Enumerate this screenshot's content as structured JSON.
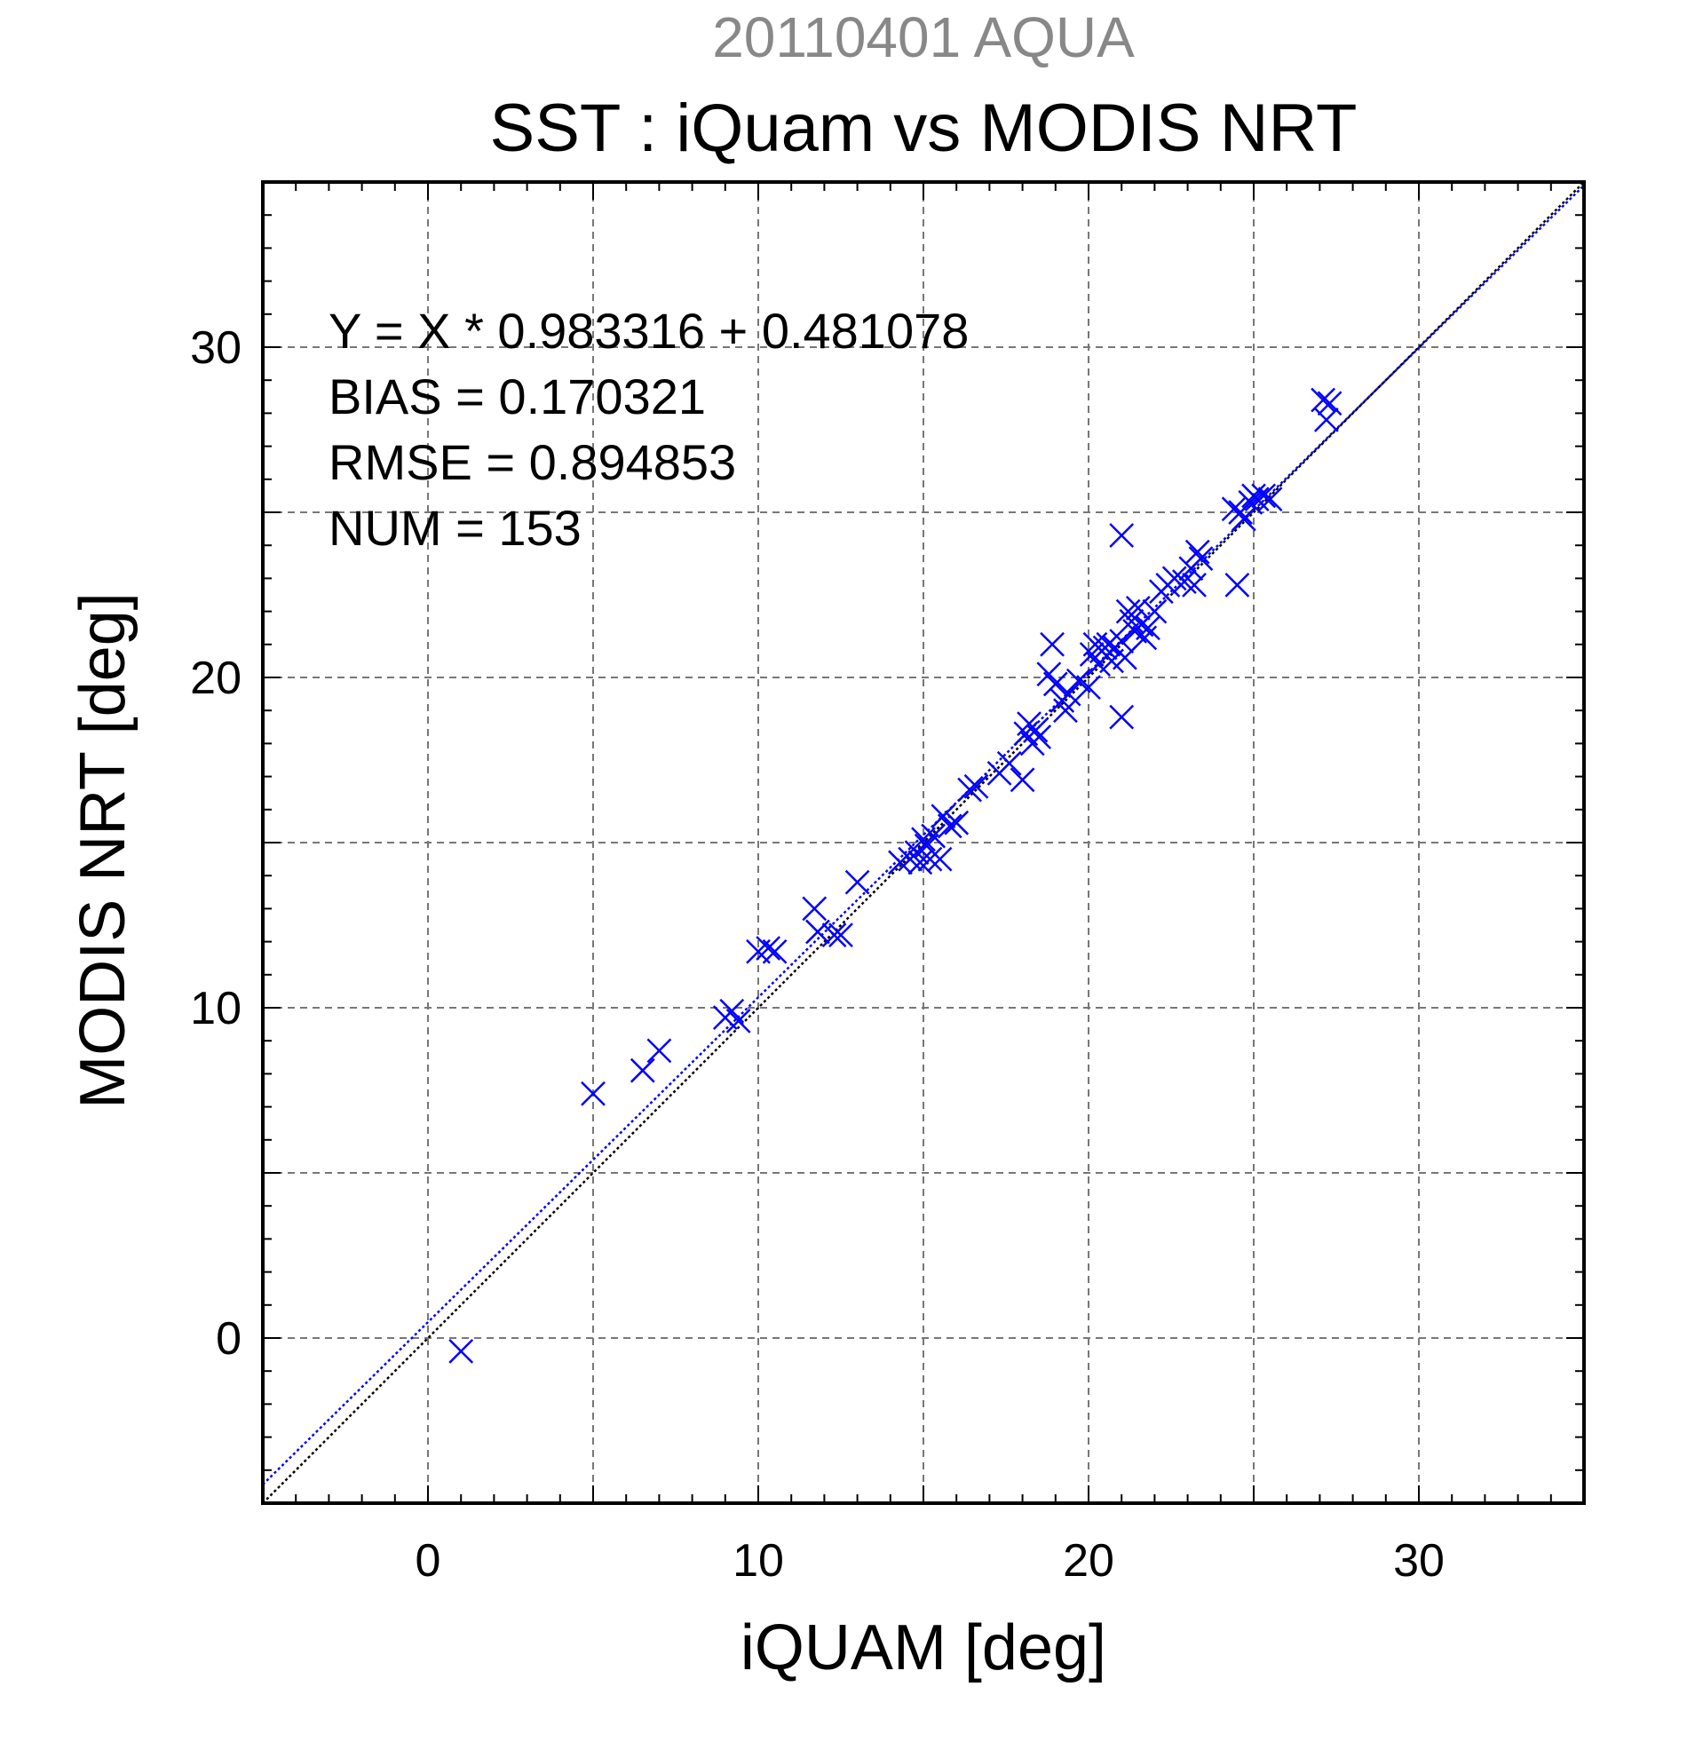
{
  "chart_data": {
    "type": "scatter",
    "title_top": "20110401 AQUA",
    "title": "SST : iQuam vs MODIS NRT",
    "xlabel": "iQUAM [deg]",
    "ylabel": "MODIS NRT [deg]",
    "xlim": [
      -5,
      35
    ],
    "ylim": [
      -5,
      35
    ],
    "xticks": [
      0,
      10,
      20,
      30
    ],
    "yticks": [
      0,
      10,
      20,
      30
    ],
    "grid": true,
    "stats": [
      "Y = X * 0.983316 + 0.481078",
      "BIAS = 0.170321",
      "RMSE = 0.894853",
      "NUM = 153"
    ],
    "fit": {
      "slope": 0.983316,
      "intercept": 0.481078
    },
    "colors": {
      "points": "#0000ff",
      "fit_line": "#0000ff",
      "identity_line": "#000000"
    },
    "points": [
      [
        1.0,
        -0.4
      ],
      [
        5.0,
        7.4
      ],
      [
        6.5,
        8.1
      ],
      [
        7.0,
        8.7
      ],
      [
        9.0,
        9.7
      ],
      [
        9.2,
        9.9
      ],
      [
        9.4,
        9.6
      ],
      [
        10.0,
        11.7
      ],
      [
        10.3,
        11.8
      ],
      [
        10.5,
        11.7
      ],
      [
        11.7,
        13.0
      ],
      [
        11.8,
        12.3
      ],
      [
        12.3,
        12.2
      ],
      [
        12.5,
        12.2
      ],
      [
        13.0,
        13.8
      ],
      [
        14.3,
        14.4
      ],
      [
        14.6,
        14.5
      ],
      [
        14.8,
        14.7
      ],
      [
        14.9,
        14.4
      ],
      [
        15.0,
        15.1
      ],
      [
        15.1,
        14.9
      ],
      [
        15.2,
        14.5
      ],
      [
        15.3,
        15.2
      ],
      [
        15.5,
        14.5
      ],
      [
        15.6,
        15.8
      ],
      [
        15.8,
        15.5
      ],
      [
        16.0,
        15.6
      ],
      [
        16.4,
        16.6
      ],
      [
        16.6,
        16.7
      ],
      [
        17.3,
        17.1
      ],
      [
        17.6,
        17.4
      ],
      [
        18.0,
        16.9
      ],
      [
        18.1,
        18.3
      ],
      [
        18.2,
        18.6
      ],
      [
        18.3,
        18.0
      ],
      [
        18.4,
        18.4
      ],
      [
        18.5,
        18.2
      ],
      [
        18.9,
        21.0
      ],
      [
        18.8,
        20.1
      ],
      [
        19.0,
        19.8
      ],
      [
        19.2,
        19.3
      ],
      [
        19.3,
        19.0
      ],
      [
        19.4,
        19.5
      ],
      [
        19.7,
        19.9
      ],
      [
        20.0,
        19.7
      ],
      [
        20.1,
        20.7
      ],
      [
        20.2,
        21.0
      ],
      [
        20.3,
        20.4
      ],
      [
        20.4,
        20.8
      ],
      [
        20.5,
        20.9
      ],
      [
        20.6,
        21.0
      ],
      [
        20.7,
        20.5
      ],
      [
        20.8,
        20.9
      ],
      [
        21.0,
        21.1
      ],
      [
        21.0,
        24.3
      ],
      [
        21.0,
        18.8
      ],
      [
        21.1,
        20.6
      ],
      [
        21.2,
        22.0
      ],
      [
        21.3,
        21.7
      ],
      [
        21.4,
        21.4
      ],
      [
        21.5,
        22.1
      ],
      [
        21.6,
        21.6
      ],
      [
        21.7,
        21.2
      ],
      [
        21.8,
        21.5
      ],
      [
        22.0,
        22.0
      ],
      [
        22.2,
        22.6
      ],
      [
        22.4,
        22.8
      ],
      [
        22.6,
        23.0
      ],
      [
        22.9,
        22.9
      ],
      [
        23.1,
        23.3
      ],
      [
        23.2,
        22.8
      ],
      [
        23.3,
        23.8
      ],
      [
        23.4,
        23.6
      ],
      [
        24.4,
        25.1
      ],
      [
        24.5,
        22.8
      ],
      [
        24.6,
        25.0
      ],
      [
        24.7,
        24.8
      ],
      [
        24.9,
        25.3
      ],
      [
        25.0,
        25.5
      ],
      [
        25.1,
        25.4
      ],
      [
        25.3,
        25.5
      ],
      [
        25.5,
        25.4
      ],
      [
        27.1,
        28.4
      ],
      [
        27.3,
        28.3
      ],
      [
        27.2,
        27.8
      ]
    ]
  }
}
